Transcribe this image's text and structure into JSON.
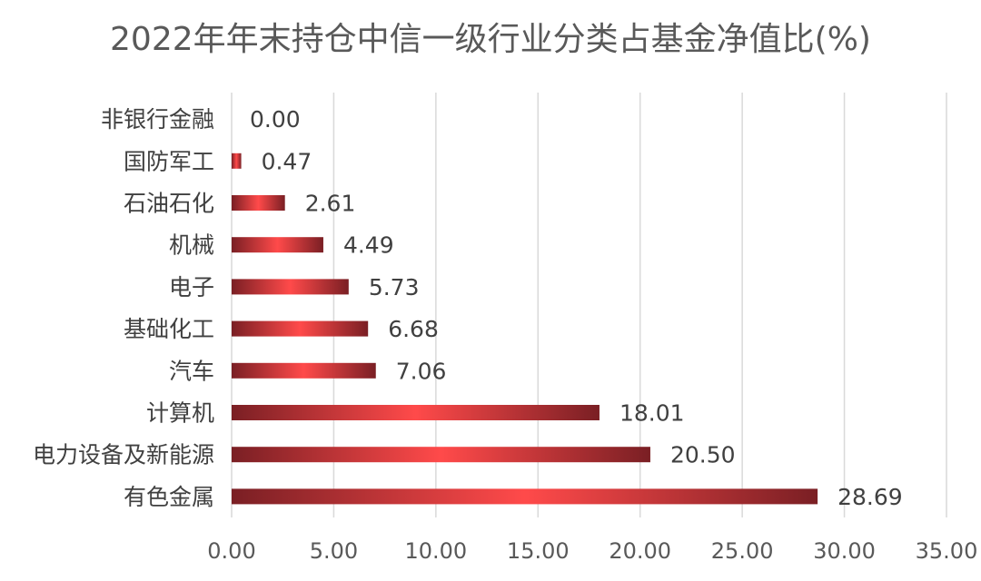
{
  "chart_data": {
    "type": "bar",
    "orientation": "horizontal",
    "title": "2022年年末持仓中信一级行业分类占基金净值比(%)",
    "categories": [
      "非银行金融",
      "国防军工",
      "石油石化",
      "机械",
      "电子",
      "基础化工",
      "汽车",
      "计算机",
      "电力设备及新能源",
      "有色金属"
    ],
    "values": [
      0.0,
      0.47,
      2.61,
      4.49,
      5.73,
      6.68,
      7.06,
      18.01,
      20.5,
      28.69
    ],
    "data_labels": [
      "0.00",
      "0.47",
      "2.61",
      "4.49",
      "5.73",
      "6.68",
      "7.06",
      "18.01",
      "20.50",
      "28.69"
    ],
    "xlim": [
      0,
      35
    ],
    "x_ticks": [
      "0.00",
      "5.00",
      "10.00",
      "15.00",
      "20.00",
      "25.00",
      "30.00",
      "35.00"
    ],
    "xlabel": "",
    "ylabel": "",
    "grid": true,
    "legend": "none",
    "colors": {
      "bar_edge": "#7a1f24",
      "bar_center": "#ff4a4a",
      "grid": "#d9d9d9",
      "text": "#404040"
    }
  }
}
